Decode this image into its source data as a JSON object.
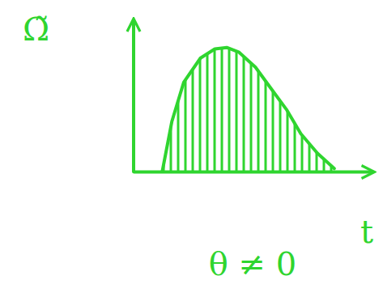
{
  "chart_data": {
    "type": "area",
    "x_label": "t",
    "y_label": "Ω̃",
    "annotation": "θ ≠ 0",
    "x": [
      1.2,
      1.6,
      2.1,
      2.8,
      3.4,
      3.9,
      4.4,
      5.1,
      5.7,
      6.4,
      7.0,
      7.7,
      8.4
    ],
    "values": [
      0,
      3.3,
      5.9,
      7.5,
      8.1,
      8.2,
      7.9,
      6.9,
      5.6,
      4.1,
      2.5,
      1.2,
      0.2
    ],
    "xlim": [
      0,
      10
    ],
    "ylim": [
      0,
      10
    ],
    "tick_labels": false,
    "color": "#2fd52f"
  }
}
